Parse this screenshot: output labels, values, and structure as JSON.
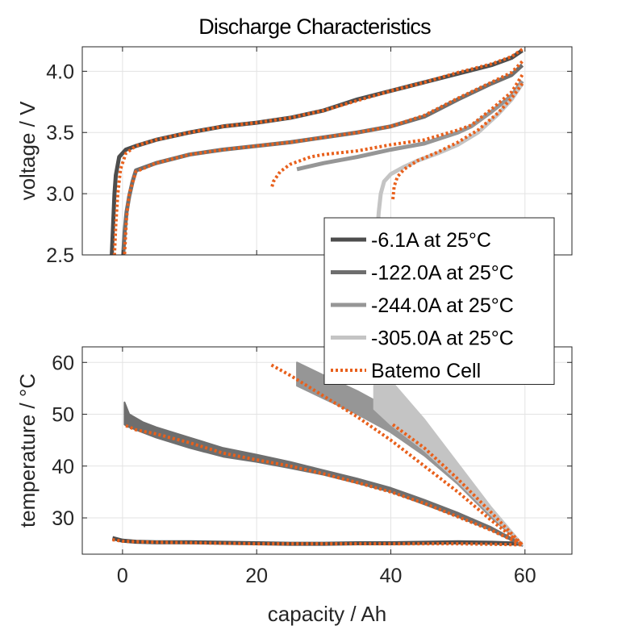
{
  "title": "Discharge Characteristics",
  "chart_data": [
    {
      "type": "line",
      "ylabel": "voltage / V",
      "xlabel": "",
      "xlim": [
        -6,
        67
      ],
      "ylim": [
        2.5,
        4.2
      ],
      "xticks": [
        0,
        20,
        40,
        60
      ],
      "show_xticklabels": false,
      "yticks": [
        2.5,
        3.0,
        3.5,
        4.0
      ],
      "ytick_labels": [
        "2.5",
        "3.0",
        "3.5",
        "4.0"
      ],
      "grid": true,
      "series": [
        {
          "name": "-6.1A at 25°C",
          "color": "#4d4d4d",
          "style": "solid",
          "width": 5,
          "x": [
            59.6,
            58,
            55,
            50,
            45,
            40,
            35,
            30,
            25,
            20,
            15,
            10,
            5,
            2,
            0.5,
            -0.5,
            -1.0,
            -1.2,
            -1.4,
            -1.6
          ],
          "y": [
            4.17,
            4.11,
            4.05,
            3.98,
            3.91,
            3.84,
            3.77,
            3.68,
            3.62,
            3.58,
            3.55,
            3.5,
            3.44,
            3.39,
            3.36,
            3.3,
            3.15,
            3.0,
            2.75,
            2.5
          ]
        },
        {
          "name": "-122.0A at 25°C",
          "color": "#6e6e6e",
          "style": "solid",
          "width": 5,
          "x": [
            59.6,
            58,
            55,
            50,
            45,
            40,
            35,
            30,
            25,
            20,
            15,
            10,
            5,
            2,
            1.5,
            1.0,
            0.6,
            0.3,
            0.1
          ],
          "y": [
            4.05,
            3.97,
            3.9,
            3.77,
            3.63,
            3.55,
            3.5,
            3.46,
            3.42,
            3.39,
            3.36,
            3.32,
            3.25,
            3.19,
            3.1,
            2.98,
            2.85,
            2.68,
            2.5
          ]
        },
        {
          "name": "-244.0A at 25°C",
          "color": "#969696",
          "style": "solid",
          "width": 5,
          "x": [
            59.6,
            58,
            55,
            52,
            50,
            45,
            40,
            35,
            30,
            26
          ],
          "y": [
            3.92,
            3.8,
            3.67,
            3.55,
            3.5,
            3.41,
            3.36,
            3.3,
            3.25,
            3.2
          ]
        },
        {
          "name": "-305.0A at 25°C",
          "color": "#c4c4c4",
          "style": "solid",
          "width": 5,
          "x": [
            59.6,
            58,
            56,
            53,
            50,
            47,
            44,
            42,
            40,
            39,
            38.5,
            38.2,
            38.0
          ],
          "y": [
            3.9,
            3.77,
            3.65,
            3.5,
            3.4,
            3.33,
            3.27,
            3.22,
            3.16,
            3.1,
            3.0,
            2.85,
            2.7
          ]
        },
        {
          "name": "Batemo Cell",
          "color": "#e8601c",
          "style": "dotted",
          "width": 4,
          "x": [
            59.6,
            58,
            55,
            50,
            45,
            40,
            35,
            30,
            25,
            20,
            15,
            10,
            5,
            2,
            0.5,
            -0.3,
            -0.7,
            -1.0,
            -1.2
          ],
          "y": [
            4.18,
            4.12,
            4.06,
            3.99,
            3.91,
            3.84,
            3.76,
            3.68,
            3.62,
            3.58,
            3.55,
            3.5,
            3.44,
            3.39,
            3.33,
            3.2,
            3.0,
            2.75,
            2.5
          ]
        },
        {
          "name": "",
          "color": "#e8601c",
          "style": "dotted",
          "width": 4,
          "x": [
            59.6,
            58,
            55,
            50,
            45,
            40,
            35,
            30,
            25,
            20,
            15,
            10,
            5,
            2,
            1.0,
            0.6,
            0.3
          ],
          "y": [
            4.08,
            3.99,
            3.91,
            3.78,
            3.64,
            3.55,
            3.5,
            3.46,
            3.42,
            3.39,
            3.36,
            3.32,
            3.25,
            3.18,
            3.0,
            2.8,
            2.5
          ]
        },
        {
          "name": "",
          "color": "#e8601c",
          "style": "dotted",
          "width": 4,
          "x": [
            59.6,
            58,
            55,
            52,
            50,
            45,
            40,
            35,
            30,
            28,
            25,
            23.5,
            22.5,
            22.2
          ],
          "y": [
            3.97,
            3.83,
            3.69,
            3.56,
            3.52,
            3.44,
            3.4,
            3.35,
            3.32,
            3.3,
            3.24,
            3.18,
            3.1,
            3.04
          ]
        },
        {
          "name": "",
          "color": "#e8601c",
          "style": "dotted",
          "width": 4,
          "x": [
            59.6,
            58,
            56,
            53,
            50,
            47,
            44,
            42,
            41,
            40.5,
            40.3
          ],
          "y": [
            3.9,
            3.78,
            3.66,
            3.52,
            3.42,
            3.34,
            3.27,
            3.2,
            3.14,
            3.06,
            2.95
          ]
        }
      ]
    },
    {
      "type": "line",
      "ylabel": "temperature / °C",
      "xlabel": "capacity / Ah",
      "xlim": [
        -6,
        67
      ],
      "ylim": [
        23,
        63
      ],
      "xticks": [
        0,
        20,
        40,
        60
      ],
      "xtick_labels": [
        "0",
        "20",
        "40",
        "60"
      ],
      "yticks": [
        30,
        40,
        50,
        60
      ],
      "ytick_labels": [
        "30",
        "40",
        "50",
        "60"
      ],
      "grid": true,
      "series": [
        {
          "name": "-6.1A at 25°C",
          "color": "#4d4d4d",
          "style": "solid",
          "width": 5,
          "x": [
            -1.5,
            0,
            2,
            5,
            10,
            15,
            20,
            25,
            30,
            35,
            40,
            45,
            50,
            55,
            59.6
          ],
          "y": [
            26.1,
            25.6,
            25.4,
            25.3,
            25.3,
            25.2,
            25.1,
            25.0,
            25.0,
            25.1,
            25.1,
            25.2,
            25.3,
            25.2,
            25.0
          ]
        },
        {
          "name": "-122.0A at 25°C",
          "color": "#6e6e6e",
          "style": "band",
          "width": 5,
          "x": [
            0.3,
            1,
            3,
            5,
            10,
            15,
            20,
            25,
            30,
            35,
            40,
            45,
            50,
            55,
            59.6
          ],
          "y_upper": [
            52.3,
            50.0,
            48.5,
            47.5,
            45.5,
            43.5,
            42.2,
            40.8,
            39.2,
            37.6,
            35.8,
            33.5,
            31.0,
            28.2,
            25.0
          ],
          "y_lower": [
            48.0,
            47.5,
            46.5,
            45.5,
            43.5,
            41.8,
            40.8,
            39.6,
            38.3,
            36.7,
            35.0,
            32.6,
            30.2,
            27.6,
            24.6
          ]
        },
        {
          "name": "-244.0A at 25°C",
          "color": "#969696",
          "style": "band",
          "width": 5,
          "x": [
            26,
            30,
            35,
            40,
            45,
            50,
            55,
            59.6
          ],
          "y_upper": [
            60.0,
            57.5,
            54.5,
            51.0,
            46.0,
            39.0,
            31.0,
            25.0
          ],
          "y_lower": [
            55.5,
            53.0,
            50.0,
            46.5,
            42.0,
            36.5,
            30.0,
            24.8
          ]
        },
        {
          "name": "-305.0A at 25°C",
          "color": "#c4c4c4",
          "style": "band",
          "width": 5,
          "x": [
            37.5,
            40,
            45,
            50,
            55,
            59.6
          ],
          "y_upper": [
            60.5,
            56.5,
            49.0,
            40.5,
            32.0,
            25.0
          ],
          "y_lower": [
            51.0,
            48.0,
            43.0,
            37.0,
            30.5,
            24.8
          ]
        },
        {
          "name": "Batemo Cell",
          "color": "#e8601c",
          "style": "dotted",
          "width": 4,
          "x": [
            -1.5,
            0,
            2,
            5,
            10,
            15,
            20,
            25,
            30,
            35,
            40,
            45,
            50,
            55,
            59.6
          ],
          "y": [
            25.8,
            25.5,
            25.4,
            25.3,
            25.2,
            25.1,
            25.0,
            25.0,
            25.0,
            25.0,
            25.0,
            25.0,
            25.0,
            24.9,
            24.8
          ]
        },
        {
          "name": "",
          "color": "#e8601c",
          "style": "dotted",
          "width": 4,
          "x": [
            0.5,
            2,
            5,
            10,
            15,
            20,
            25,
            30,
            35,
            40,
            45,
            50,
            55,
            59.6
          ],
          "y": [
            47.8,
            47.0,
            46.2,
            44.5,
            42.5,
            41.2,
            40.0,
            38.5,
            36.8,
            35.0,
            32.8,
            30.2,
            27.6,
            24.8
          ]
        },
        {
          "name": "",
          "color": "#e8601c",
          "style": "dotted",
          "width": 4,
          "x": [
            22.2,
            25,
            30,
            35,
            40,
            45,
            50,
            55,
            59.6
          ],
          "y": [
            59.5,
            57.5,
            53.5,
            49.5,
            45.0,
            40.0,
            35.0,
            29.5,
            24.8
          ]
        },
        {
          "name": "",
          "color": "#e8601c",
          "style": "dotted",
          "width": 4,
          "x": [
            40.3,
            45,
            50,
            55,
            59.6
          ],
          "y": [
            48.0,
            43.5,
            37.5,
            31.0,
            24.8
          ]
        }
      ]
    }
  ],
  "legend": {
    "placement": "overlapping upper plot, lower-right",
    "entries": [
      {
        "label": "-6.1A at 25°C",
        "color": "#4d4d4d",
        "style": "solid"
      },
      {
        "label": "-122.0A at 25°C",
        "color": "#6e6e6e",
        "style": "solid"
      },
      {
        "label": "-244.0A at 25°C",
        "color": "#969696",
        "style": "solid"
      },
      {
        "label": "-305.0A at 25°C",
        "color": "#c4c4c4",
        "style": "solid"
      },
      {
        "label": "Batemo Cell",
        "color": "#e8601c",
        "style": "dotted"
      }
    ]
  }
}
